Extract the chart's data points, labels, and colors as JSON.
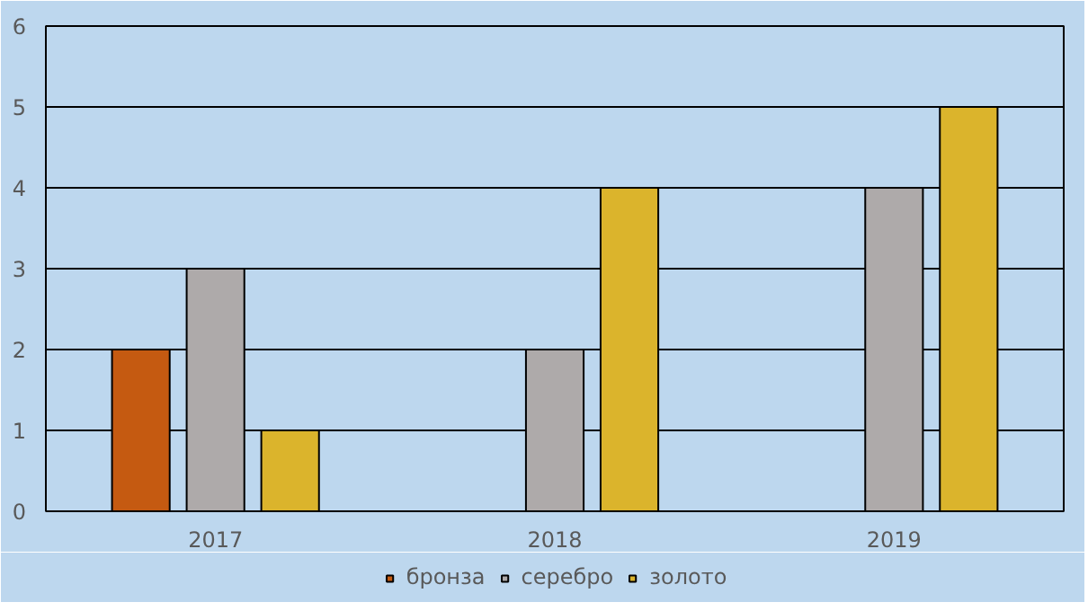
{
  "chart_data": {
    "type": "bar",
    "categories": [
      "2017",
      "2018",
      "2019"
    ],
    "series": [
      {
        "name": "бронза",
        "color": "#c55a11",
        "values": [
          2,
          null,
          null
        ]
      },
      {
        "name": "серебро",
        "color": "#aeaaaa",
        "values": [
          3,
          2,
          4
        ]
      },
      {
        "name": "золото",
        "color": "#dbb42c",
        "values": [
          1,
          4,
          5
        ]
      }
    ],
    "ylim": [
      0,
      6
    ],
    "yticks": [
      0,
      1,
      2,
      3,
      4,
      5,
      6
    ],
    "grid": "y",
    "legend": "bottom"
  }
}
